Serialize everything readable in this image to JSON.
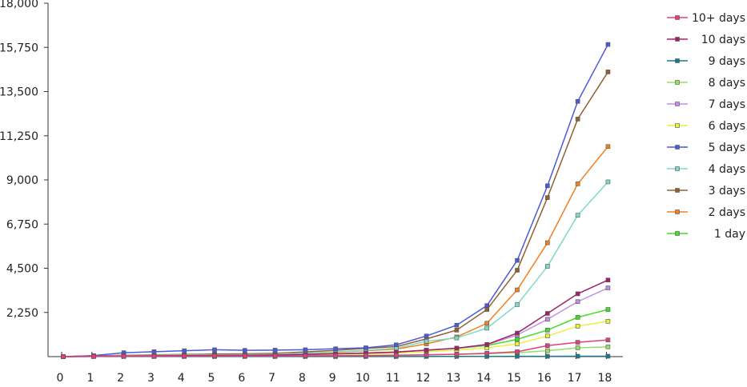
{
  "chart_data": {
    "type": "line",
    "title": "",
    "xlabel": "",
    "ylabel": "",
    "x": [
      0,
      1,
      2,
      3,
      4,
      5,
      6,
      7,
      8,
      9,
      10,
      11,
      12,
      13,
      14,
      15,
      16,
      17,
      18
    ],
    "ylim": [
      0,
      18000
    ],
    "yticks": [
      "2,250",
      "4,500",
      "6,750",
      "9,000",
      "11,250",
      "13,500",
      "15,750",
      "18,000"
    ],
    "ytick_values": [
      2250,
      4500,
      6750,
      9000,
      11250,
      13500,
      15750,
      18000
    ],
    "xticks": [
      "0",
      "1",
      "2",
      "3",
      "4",
      "5",
      "6",
      "7",
      "8",
      "9",
      "10",
      "11",
      "12",
      "13",
      "14",
      "15",
      "16",
      "17",
      "18"
    ],
    "grid": false,
    "legend_position": "right",
    "series": [
      {
        "name": "10+ days",
        "color": "#e0407a",
        "values": [
          0,
          10,
          15,
          20,
          25,
          30,
          30,
          35,
          40,
          45,
          55,
          70,
          90,
          120,
          170,
          250,
          560,
          730,
          850
        ]
      },
      {
        "name": "10 days",
        "color": "#a0206a",
        "values": [
          0,
          20,
          30,
          40,
          50,
          60,
          65,
          80,
          110,
          140,
          180,
          230,
          330,
          430,
          620,
          1200,
          2200,
          3200,
          3900
        ]
      },
      {
        "name": "9 days",
        "color": "#1a7a8a",
        "values": [
          0,
          5,
          5,
          5,
          5,
          5,
          5,
          5,
          5,
          5,
          5,
          5,
          10,
          10,
          10,
          15,
          15,
          20,
          20
        ]
      },
      {
        "name": "8 days",
        "color": "#99dd66",
        "values": [
          0,
          10,
          15,
          20,
          25,
          30,
          30,
          35,
          45,
          50,
          60,
          70,
          90,
          110,
          150,
          200,
          300,
          450,
          500
        ]
      },
      {
        "name": "7 days",
        "color": "#c090e8",
        "values": [
          0,
          20,
          30,
          40,
          50,
          60,
          65,
          80,
          110,
          140,
          180,
          230,
          330,
          430,
          600,
          1100,
          1900,
          2800,
          3500
        ]
      },
      {
        "name": "6 days",
        "color": "#e8f040",
        "values": [
          0,
          15,
          20,
          30,
          40,
          50,
          55,
          65,
          90,
          110,
          140,
          180,
          250,
          330,
          450,
          650,
          1050,
          1550,
          1800
        ]
      },
      {
        "name": "5 days",
        "color": "#4a5ad8",
        "values": [
          0,
          50,
          200,
          250,
          300,
          350,
          320,
          330,
          350,
          400,
          450,
          600,
          1050,
          1600,
          2600,
          4900,
          8700,
          13000,
          15900
        ]
      },
      {
        "name": "4 days",
        "color": "#80d8c8",
        "values": [
          0,
          30,
          60,
          70,
          80,
          90,
          100,
          120,
          180,
          240,
          320,
          430,
          780,
          950,
          1450,
          2650,
          4600,
          7200,
          8900
        ]
      },
      {
        "name": "3 days",
        "color": "#906030",
        "values": [
          0,
          40,
          70,
          90,
          110,
          130,
          140,
          170,
          240,
          320,
          420,
          510,
          900,
          1350,
          2400,
          4400,
          8100,
          12100,
          14500
        ]
      },
      {
        "name": "2 days",
        "color": "#f08020",
        "values": [
          0,
          30,
          50,
          60,
          70,
          80,
          90,
          110,
          160,
          220,
          300,
          380,
          650,
          1000,
          1700,
          3400,
          5800,
          8800,
          10700
        ]
      },
      {
        "name": "1 day",
        "color": "#44dd22",
        "values": [
          0,
          20,
          30,
          40,
          50,
          60,
          65,
          80,
          110,
          140,
          190,
          240,
          320,
          420,
          560,
          880,
          1350,
          2000,
          2400
        ]
      }
    ]
  }
}
